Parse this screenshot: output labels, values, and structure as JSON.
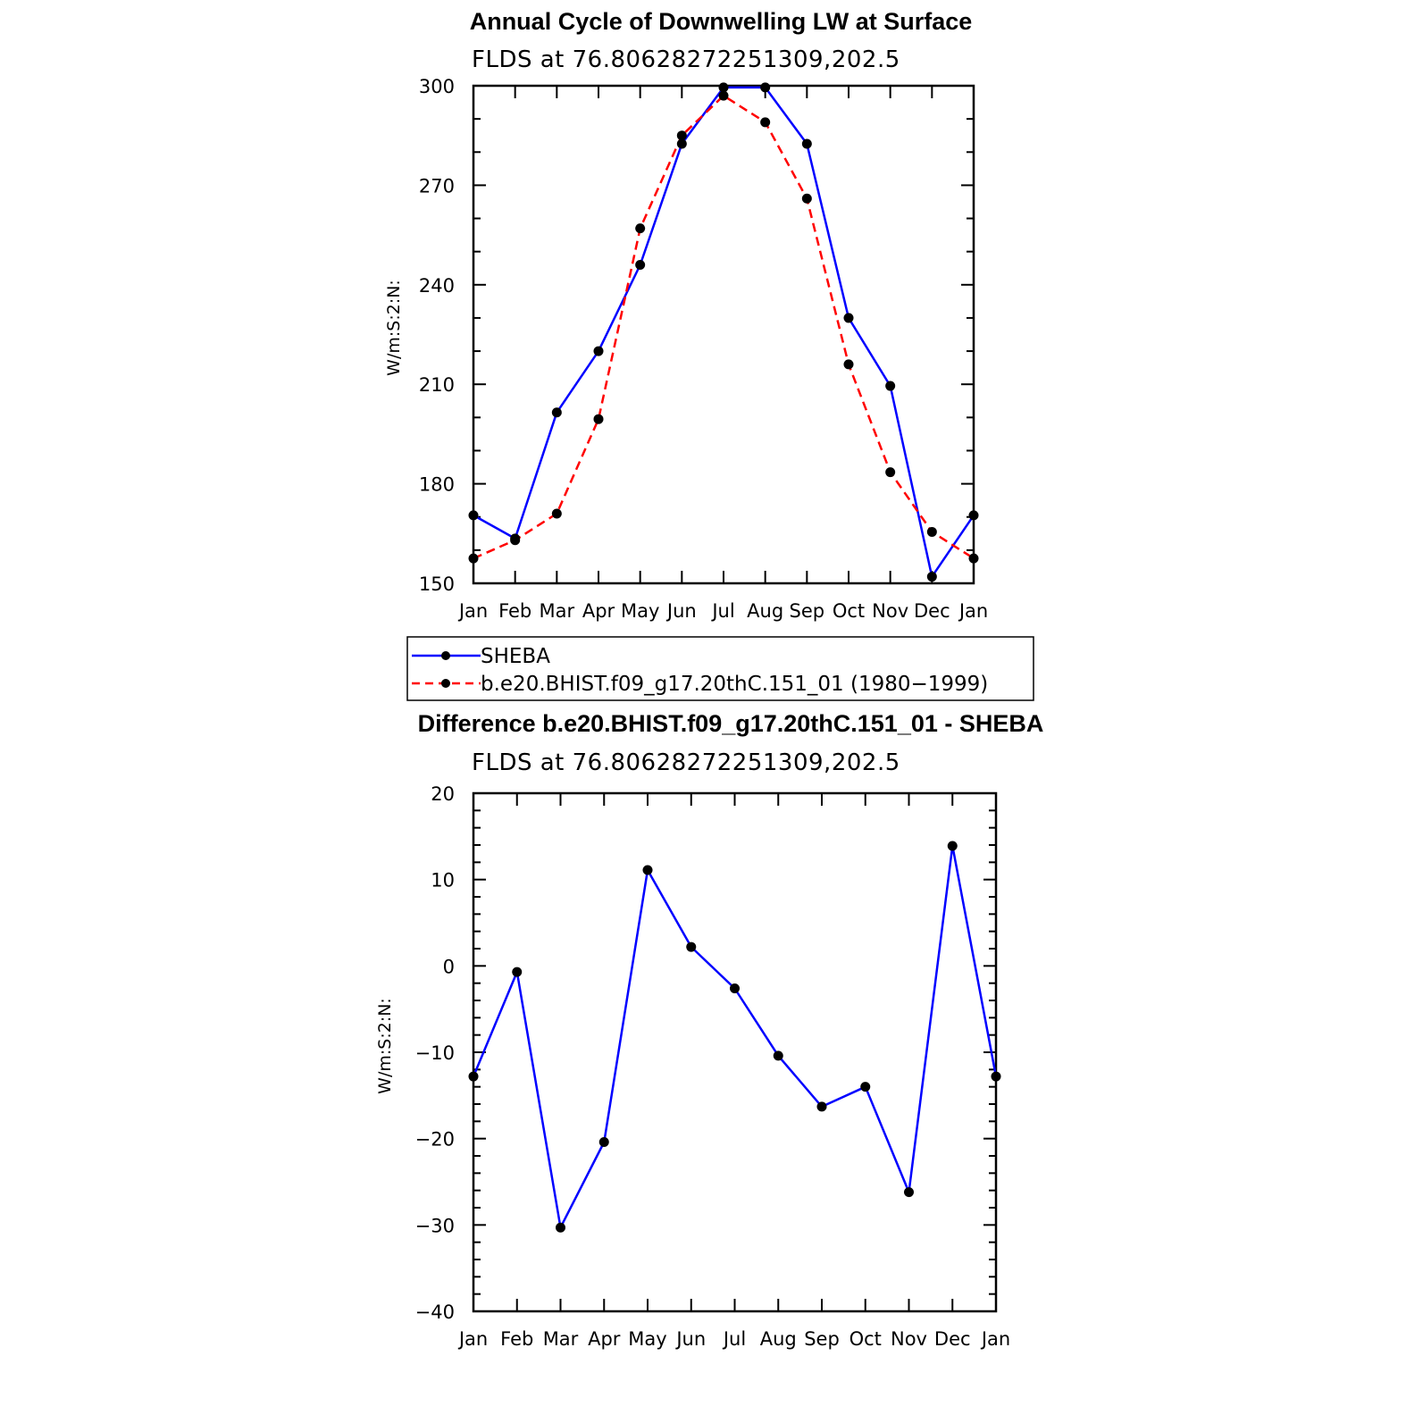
{
  "chart_data": [
    {
      "type": "line",
      "title": "Annual Cycle of Downwelling LW at Surface",
      "subtitle": "FLDS  at  76.80628272251309,202.5",
      "ylabel": "W/m:S:2:N:",
      "xlabel": "",
      "categories": [
        "Jan",
        "Feb",
        "Mar",
        "Apr",
        "May",
        "Jun",
        "Jul",
        "Aug",
        "Sep",
        "Oct",
        "Nov",
        "Dec",
        "Jan"
      ],
      "ylim": [
        150,
        300
      ],
      "yticks": [
        150,
        180,
        210,
        240,
        270,
        300
      ],
      "series": [
        {
          "name": "SHEBA",
          "color": "#0000ff",
          "style": "solid",
          "values": [
            170.5,
            163.5,
            201.5,
            220,
            246,
            282.5,
            299.5,
            299.5,
            282.5,
            230,
            209.5,
            152,
            170.5
          ]
        },
        {
          "name": "b.e20.BHIST.f09_g17.20thC.151_01 (1980−1999)",
          "color": "#ff0000",
          "style": "dashed",
          "values": [
            157.5,
            163,
            171,
            199.5,
            257,
            285,
            297,
            289,
            266,
            216,
            183.5,
            165.5,
            157.5
          ]
        }
      ],
      "legend": "below"
    },
    {
      "type": "line",
      "title": "Difference b.e20.BHIST.f09_g17.20thC.151_01 - SHEBA",
      "subtitle": "FLDS  at  76.80628272251309,202.5",
      "ylabel": "W/m:S:2:N:",
      "xlabel": "",
      "categories": [
        "Jan",
        "Feb",
        "Mar",
        "Apr",
        "May",
        "Jun",
        "Jul",
        "Aug",
        "Sep",
        "Oct",
        "Nov",
        "Dec",
        "Jan"
      ],
      "ylim": [
        -40,
        20
      ],
      "yticks": [
        20,
        10,
        0,
        -10,
        -20,
        -30,
        -40
      ],
      "ytick_labels": [
        "20",
        "10",
        "0",
        "−10",
        "−20",
        "−30",
        "−40"
      ],
      "series": [
        {
          "color": "#0000ff",
          "style": "solid",
          "values": [
            -12.8,
            -0.7,
            -30.3,
            -20.4,
            11.1,
            2.2,
            -2.6,
            -10.4,
            -16.3,
            -14,
            -26.2,
            13.9,
            -12.8
          ]
        }
      ]
    }
  ]
}
